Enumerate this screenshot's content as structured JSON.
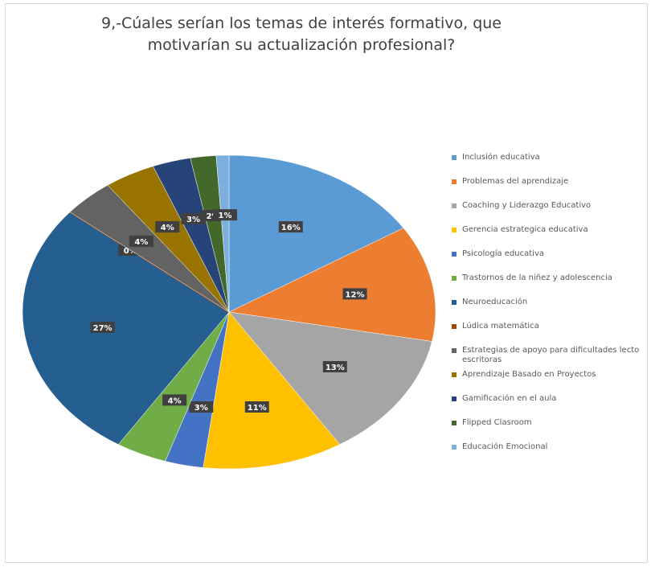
{
  "chart_data": {
    "type": "pie",
    "title": "9,-Cúales serían los temas de interés formativo, que motivarían su  actualización profesional?",
    "categories": [
      "Inclusión educativa",
      "Problemas del aprendizaje",
      "Coaching y Liderazgo Educativo",
      "Gerencia estrategica educativa",
      "Psicología educativa",
      "Trastornos de la niñez y adolescencia",
      "Neuroeducación",
      "Lúdica matemática",
      "Estrategias de apoyo para dificultades lecto escritoras",
      "Aprendizaje Basado en Proyectos",
      "Gamificación en el aula",
      "Flipped Clasroom",
      "Educación Emocional"
    ],
    "values": [
      16,
      12,
      13,
      11,
      3,
      4,
      27,
      0,
      4,
      4,
      3,
      2,
      1
    ],
    "value_labels": [
      "16%",
      "12%",
      "13%",
      "11%",
      "3%",
      "4%",
      "27%",
      "0%",
      "4%",
      "4%",
      "3%",
      "2%",
      "1%"
    ],
    "colors": [
      "#5B9BD5",
      "#ED7D31",
      "#A5A5A5",
      "#FFC000",
      "#4472C4",
      "#70AD47",
      "#255E91",
      "#9E480E",
      "#636363",
      "#997300",
      "#264478",
      "#43682B",
      "#7CAFDD"
    ],
    "legend": "right"
  }
}
